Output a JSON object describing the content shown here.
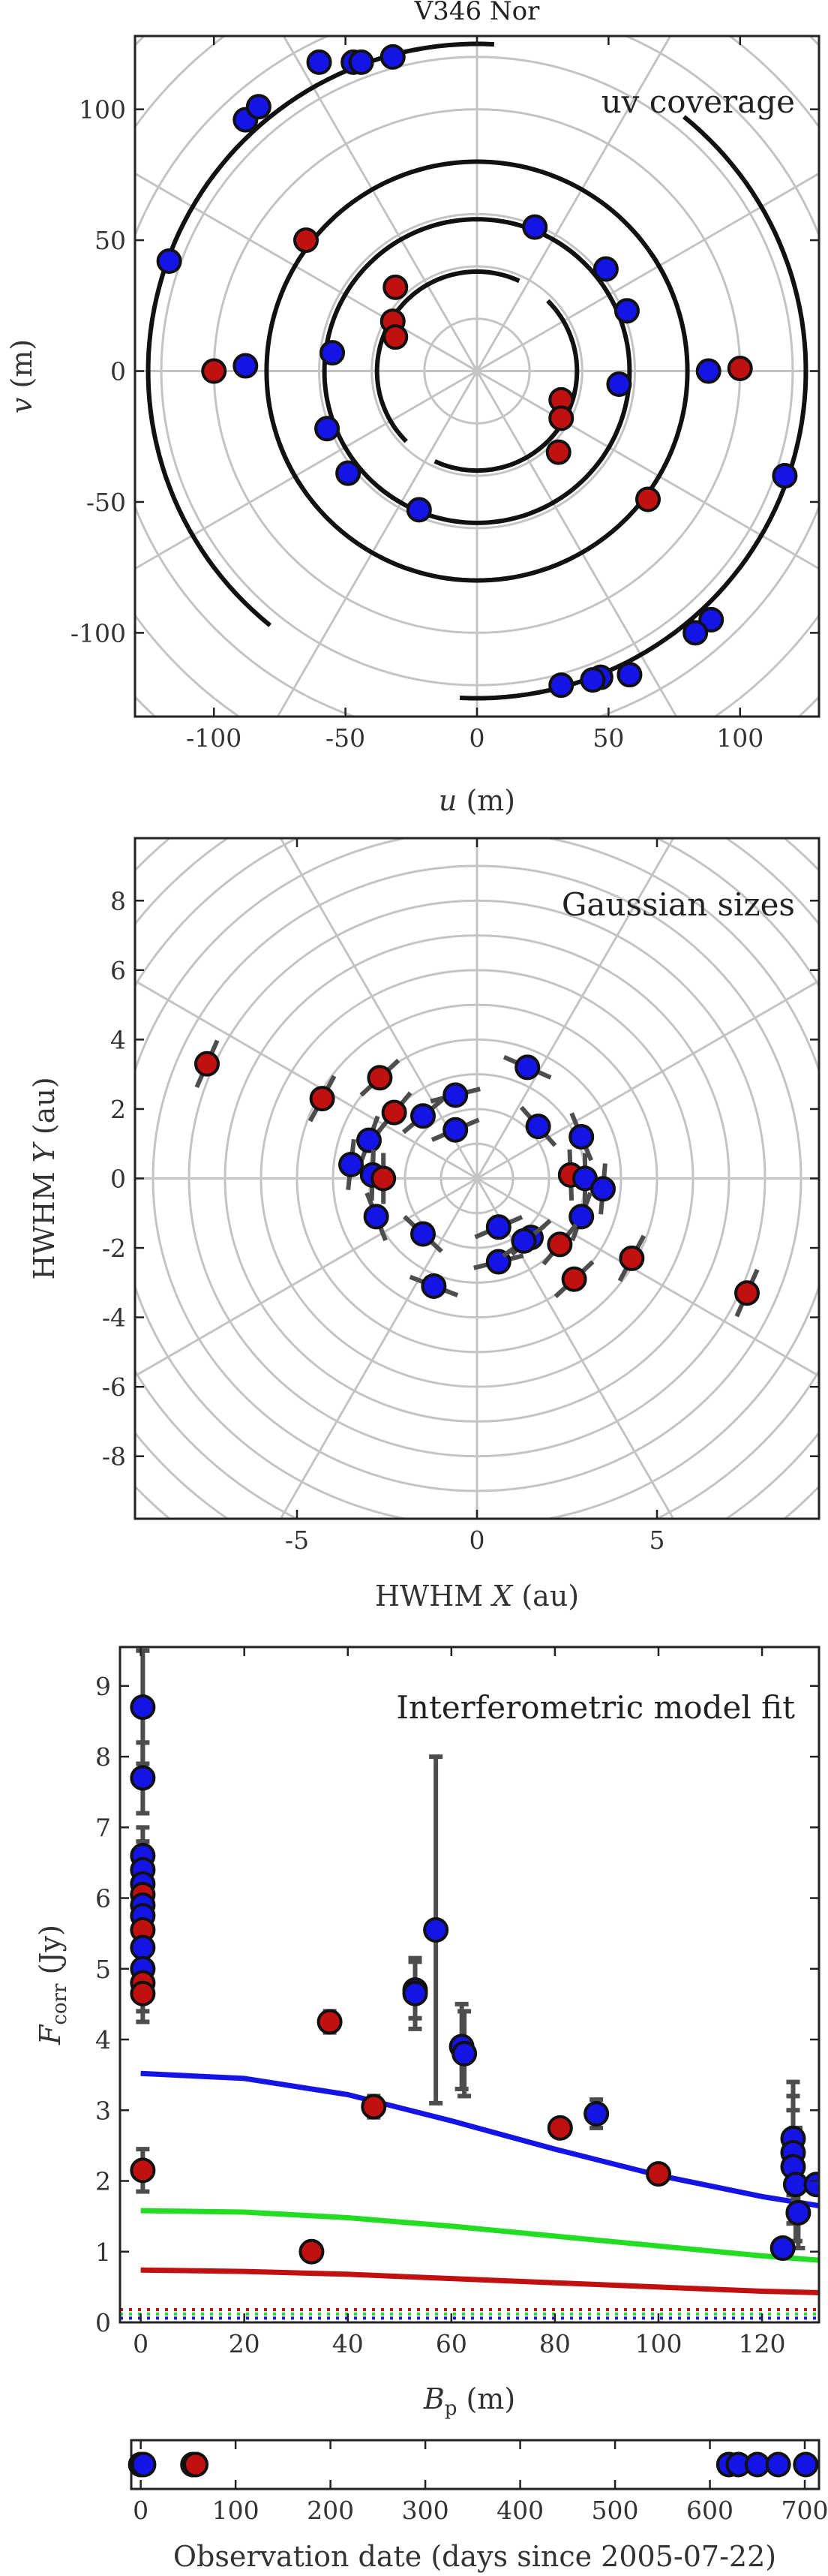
{
  "colors": {
    "blue": "#1414e6",
    "red": "#c01010",
    "marker_edge": "#111111",
    "green": "#22dd22",
    "grid": "#c4c4c4",
    "errorbar": "#4d4d4d"
  },
  "chart_data": [
    {
      "id": "uv",
      "type": "scatter",
      "figure_title": "V346 Nor",
      "title": "uv coverage",
      "xlabel": "u (m)",
      "ylabel": "v (m)",
      "xlim": [
        -130,
        130
      ],
      "ylim": [
        -132,
        128
      ],
      "xticks": [
        -100,
        -50,
        0,
        50,
        100
      ],
      "yticks": [
        -100,
        -50,
        0,
        50,
        100
      ],
      "grid": "polar",
      "tracks": [
        {
          "r": 125,
          "a1": 87,
          "a2": 232
        },
        {
          "r": 125,
          "a1": 267,
          "a2": 412
        },
        {
          "r": 80,
          "a1": 20,
          "a2": 215
        },
        {
          "r": 80,
          "a1": 200,
          "a2": 395
        },
        {
          "r": 58,
          "a1": 50,
          "a2": 240
        },
        {
          "r": 58,
          "a1": 230,
          "a2": 420
        },
        {
          "r": 38,
          "a1": 65,
          "a2": 225
        },
        {
          "r": 38,
          "a1": 245,
          "a2": 405
        }
      ],
      "points": [
        {
          "u": -60,
          "v": 118,
          "c": "blue"
        },
        {
          "u": -47,
          "v": 118,
          "c": "blue"
        },
        {
          "u": -44,
          "v": 118,
          "c": "blue"
        },
        {
          "u": -32,
          "v": 120,
          "c": "blue"
        },
        {
          "u": -88,
          "v": 96,
          "c": "blue"
        },
        {
          "u": -83,
          "v": 101,
          "c": "blue"
        },
        {
          "u": -117,
          "v": 42,
          "c": "blue"
        },
        {
          "u": -100,
          "v": 0,
          "c": "red"
        },
        {
          "u": -88,
          "v": 2,
          "c": "blue"
        },
        {
          "u": -65,
          "v": 50,
          "c": "red"
        },
        {
          "u": -55,
          "v": 7,
          "c": "blue"
        },
        {
          "u": -57,
          "v": -22,
          "c": "blue"
        },
        {
          "u": -49,
          "v": -39,
          "c": "blue"
        },
        {
          "u": -22,
          "v": -53,
          "c": "blue"
        },
        {
          "u": -31,
          "v": 32,
          "c": "red"
        },
        {
          "u": -32,
          "v": 19,
          "c": "red"
        },
        {
          "u": -31,
          "v": 13,
          "c": "red"
        },
        {
          "u": 22,
          "v": 55,
          "c": "blue"
        },
        {
          "u": 49,
          "v": 39,
          "c": "blue"
        },
        {
          "u": 57,
          "v": 23,
          "c": "blue"
        },
        {
          "u": 54,
          "v": -5,
          "c": "blue"
        },
        {
          "u": 32,
          "v": -11,
          "c": "red"
        },
        {
          "u": 32,
          "v": -18,
          "c": "red"
        },
        {
          "u": 31,
          "v": -31,
          "c": "red"
        },
        {
          "u": 65,
          "v": -49,
          "c": "red"
        },
        {
          "u": 88,
          "v": 0,
          "c": "blue"
        },
        {
          "u": 100,
          "v": 1,
          "c": "red"
        },
        {
          "u": 117,
          "v": -40,
          "c": "blue"
        },
        {
          "u": 89,
          "v": -95,
          "c": "blue"
        },
        {
          "u": 83,
          "v": -100,
          "c": "blue"
        },
        {
          "u": 58,
          "v": -116,
          "c": "blue"
        },
        {
          "u": 47,
          "v": -117,
          "c": "blue"
        },
        {
          "u": 44,
          "v": -118,
          "c": "blue"
        },
        {
          "u": 32,
          "v": -120,
          "c": "blue"
        }
      ]
    },
    {
      "id": "sizes",
      "type": "scatter",
      "title": "Gaussian sizes",
      "xlabel": "HWHM X (au)",
      "ylabel": "HWHM Y (au)",
      "xlim": [
        -9.5,
        9.5
      ],
      "ylim": [
        -9.8,
        9.8
      ],
      "xticks": [
        -5,
        0,
        5
      ],
      "yticks": [
        -8,
        -6,
        -4,
        -2,
        0,
        2,
        4,
        6,
        8
      ],
      "grid": "polar",
      "points": [
        {
          "x": -7.5,
          "y": 3.3,
          "c": "red"
        },
        {
          "x": -4.3,
          "y": 2.3,
          "c": "red"
        },
        {
          "x": -2.7,
          "y": 2.9,
          "c": "red"
        },
        {
          "x": -2.3,
          "y": 1.9,
          "c": "red"
        },
        {
          "x": -1.5,
          "y": 1.8,
          "c": "blue"
        },
        {
          "x": -0.6,
          "y": 2.4,
          "c": "blue"
        },
        {
          "x": -0.6,
          "y": 1.4,
          "c": "blue"
        },
        {
          "x": -3.0,
          "y": 1.1,
          "c": "blue"
        },
        {
          "x": -3.5,
          "y": 0.4,
          "c": "blue"
        },
        {
          "x": -2.9,
          "y": 0.1,
          "c": "blue"
        },
        {
          "x": -2.6,
          "y": 0.0,
          "c": "red"
        },
        {
          "x": -2.8,
          "y": -1.1,
          "c": "blue"
        },
        {
          "x": -1.5,
          "y": -1.6,
          "c": "blue"
        },
        {
          "x": -1.2,
          "y": -3.1,
          "c": "blue"
        },
        {
          "x": 1.4,
          "y": 3.2,
          "c": "blue"
        },
        {
          "x": 1.7,
          "y": 1.5,
          "c": "blue"
        },
        {
          "x": 2.9,
          "y": 1.2,
          "c": "blue"
        },
        {
          "x": 2.6,
          "y": 0.1,
          "c": "red"
        },
        {
          "x": 3.0,
          "y": 0.0,
          "c": "blue"
        },
        {
          "x": 3.5,
          "y": -0.3,
          "c": "blue"
        },
        {
          "x": 2.9,
          "y": -1.1,
          "c": "blue"
        },
        {
          "x": 2.3,
          "y": -1.9,
          "c": "red"
        },
        {
          "x": 1.5,
          "y": -1.7,
          "c": "blue"
        },
        {
          "x": 0.6,
          "y": -1.4,
          "c": "blue"
        },
        {
          "x": 0.6,
          "y": -2.4,
          "c": "blue"
        },
        {
          "x": 1.3,
          "y": -1.8,
          "c": "blue"
        },
        {
          "x": 2.7,
          "y": -2.9,
          "c": "red"
        },
        {
          "x": 4.3,
          "y": -2.3,
          "c": "red"
        },
        {
          "x": 7.5,
          "y": -3.3,
          "c": "red"
        }
      ]
    },
    {
      "id": "fit",
      "type": "scatter",
      "title": "Interferometric model fit",
      "xlabel": "Bp (m)",
      "ylabel": "Fcorr (Jy)",
      "xlim": [
        -4,
        131
      ],
      "ylim": [
        0,
        9.55
      ],
      "xticks": [
        0,
        20,
        40,
        60,
        80,
        100,
        120
      ],
      "yticks": [
        0,
        1,
        2,
        3,
        4,
        5,
        6,
        7,
        8,
        9
      ],
      "points": [
        {
          "x": 0.4,
          "y": 8.7,
          "e": 0.8,
          "c": "blue"
        },
        {
          "x": 0.4,
          "y": 7.7,
          "e": 0.5,
          "c": "blue"
        },
        {
          "x": 0.4,
          "y": 6.6,
          "e": 0.4,
          "c": "blue"
        },
        {
          "x": 0.4,
          "y": 6.4,
          "e": 0.4,
          "c": "blue"
        },
        {
          "x": 0.4,
          "y": 6.2,
          "e": 0.4,
          "c": "blue"
        },
        {
          "x": 0.4,
          "y": 6.05,
          "e": 0.4,
          "c": "red"
        },
        {
          "x": 0.4,
          "y": 5.9,
          "e": 0.4,
          "c": "blue"
        },
        {
          "x": 0.4,
          "y": 5.75,
          "e": 0.4,
          "c": "blue"
        },
        {
          "x": 0.4,
          "y": 5.55,
          "e": 0.4,
          "c": "red"
        },
        {
          "x": 0.4,
          "y": 5.3,
          "e": 0.4,
          "c": "blue"
        },
        {
          "x": 0.4,
          "y": 5.0,
          "e": 0.4,
          "c": "blue"
        },
        {
          "x": 0.4,
          "y": 4.8,
          "e": 0.4,
          "c": "red"
        },
        {
          "x": 0.4,
          "y": 4.65,
          "e": 0.4,
          "c": "red"
        },
        {
          "x": 0.4,
          "y": 2.15,
          "e": 0.3,
          "c": "red"
        },
        {
          "x": 33,
          "y": 1.0,
          "e": 0.05,
          "c": "red"
        },
        {
          "x": 36.5,
          "y": 4.25,
          "e": 0.15,
          "c": "red"
        },
        {
          "x": 45,
          "y": 3.05,
          "e": 0.15,
          "c": "red"
        },
        {
          "x": 53,
          "y": 4.7,
          "e": 0.4,
          "c": "blue"
        },
        {
          "x": 53,
          "y": 4.65,
          "e": 0.5,
          "c": "blue"
        },
        {
          "x": 57,
          "y": 5.55,
          "e": 2.45,
          "c": "blue"
        },
        {
          "x": 62,
          "y": 3.9,
          "e": 0.6,
          "c": "blue"
        },
        {
          "x": 62.5,
          "y": 3.8,
          "e": 0.6,
          "c": "blue"
        },
        {
          "x": 81,
          "y": 2.75,
          "e": 0.1,
          "c": "red"
        },
        {
          "x": 88,
          "y": 2.95,
          "e": 0.2,
          "c": "blue"
        },
        {
          "x": 100,
          "y": 2.1,
          "e": 0.1,
          "c": "red"
        },
        {
          "x": 124,
          "y": 1.05,
          "e": 0.05,
          "c": "blue"
        },
        {
          "x": 126,
          "y": 2.6,
          "e": 0.8,
          "c": "blue"
        },
        {
          "x": 126,
          "y": 2.4,
          "e": 0.8,
          "c": "blue"
        },
        {
          "x": 126,
          "y": 2.2,
          "e": 0.8,
          "c": "blue"
        },
        {
          "x": 126.5,
          "y": 1.95,
          "e": 0.8,
          "c": "blue"
        },
        {
          "x": 127,
          "y": 1.55,
          "e": 0.5,
          "c": "blue"
        },
        {
          "x": 130.5,
          "y": 1.95,
          "e": 0.1,
          "c": "blue"
        }
      ],
      "curves": [
        {
          "c": "blue",
          "pts": [
            [
              0,
              3.52
            ],
            [
              20,
              3.45
            ],
            [
              40,
              3.22
            ],
            [
              60,
              2.85
            ],
            [
              80,
              2.45
            ],
            [
              100,
              2.08
            ],
            [
              120,
              1.78
            ],
            [
              131,
              1.65
            ]
          ]
        },
        {
          "c": "green",
          "pts": [
            [
              0,
              1.58
            ],
            [
              20,
              1.56
            ],
            [
              40,
              1.48
            ],
            [
              60,
              1.36
            ],
            [
              80,
              1.22
            ],
            [
              100,
              1.08
            ],
            [
              120,
              0.94
            ],
            [
              131,
              0.88
            ]
          ]
        },
        {
          "c": "red",
          "pts": [
            [
              0,
              0.74
            ],
            [
              20,
              0.72
            ],
            [
              40,
              0.68
            ],
            [
              60,
              0.62
            ],
            [
              80,
              0.56
            ],
            [
              100,
              0.5
            ],
            [
              120,
              0.44
            ],
            [
              131,
              0.42
            ]
          ]
        }
      ],
      "floor_lines": [
        0.18,
        0.12,
        0.06
      ]
    },
    {
      "id": "dates",
      "type": "scatter",
      "xlabel": "Observation date (days since 2005-07-22)",
      "xlim": [
        -10,
        715
      ],
      "xticks": [
        0,
        100,
        200,
        300,
        400,
        500,
        600,
        700
      ],
      "points": [
        {
          "x": 0,
          "c": "red"
        },
        {
          "x": 3,
          "c": "blue"
        },
        {
          "x": 55,
          "c": "blue"
        },
        {
          "x": 58,
          "c": "red"
        },
        {
          "x": 620,
          "c": "blue"
        },
        {
          "x": 630,
          "c": "blue"
        },
        {
          "x": 650,
          "c": "blue"
        },
        {
          "x": 672,
          "c": "blue"
        },
        {
          "x": 701,
          "c": "blue"
        }
      ]
    }
  ]
}
